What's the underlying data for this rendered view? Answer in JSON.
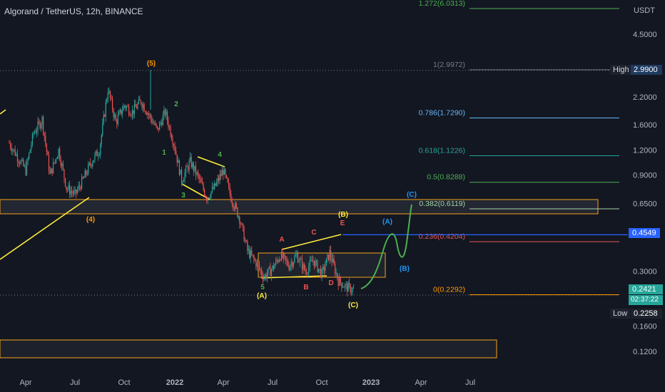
{
  "header": {
    "title": "Algorand / TetherUS, 12h, BINANCE"
  },
  "price_axis": {
    "currency": "USDT",
    "ticks": [
      "4.5000",
      "2.2000",
      "1.6000",
      "1.2000",
      "0.9000",
      "0.6500",
      "0.3000",
      "0.1600",
      "0.1200"
    ],
    "high_label": "High",
    "high_value": "2.9900",
    "low_label": "Low",
    "low_value": "0.2258",
    "last_price": "0.2421",
    "countdown": "02:37:22",
    "fib_price_tag": "0.4549"
  },
  "time_axis": {
    "ticks": [
      "Apr",
      "Jul",
      "Oct",
      "2022",
      "Apr",
      "Jul",
      "Oct",
      "2023",
      "Apr",
      "Jul"
    ]
  },
  "colors": {
    "background": "#131722",
    "candle_up": "#26a69a",
    "candle_down": "#ef5350",
    "trendline": "#ffeb3b",
    "zone_border": "#f7a21b",
    "projection": "#4caf50",
    "blue": "#2962ff",
    "high_tag": "#1e3a5f",
    "last_price_tag": "#26a69a"
  },
  "chart_data": {
    "type": "candlestick",
    "symbol": "Algorand / TetherUS",
    "interval": "12h",
    "exchange": "BINANCE",
    "price_scale": "log",
    "y_ticks": [
      4.5,
      2.2,
      1.6,
      1.2,
      0.9,
      0.65,
      0.3,
      0.16,
      0.12
    ],
    "x_ticks": [
      "Apr",
      "Jul",
      "Oct",
      "2022",
      "Apr",
      "Jul",
      "Oct",
      "2023",
      "Apr",
      "Jul"
    ],
    "fib_levels": [
      {
        "label": "1.272(6.0313)",
        "ratio": 1.272,
        "price": 6.0313,
        "color": "#4caf50"
      },
      {
        "label": "1(2.9972)",
        "ratio": 1,
        "price": 2.9972,
        "color": "#787b86"
      },
      {
        "label": "0.786(1.7290)",
        "ratio": 0.786,
        "price": 1.729,
        "color": "#64b5f6"
      },
      {
        "label": "0.618(1.1226)",
        "ratio": 0.618,
        "price": 1.1226,
        "color": "#26a69a"
      },
      {
        "label": "0.5(0.8288)",
        "ratio": 0.5,
        "price": 0.8288,
        "color": "#4caf50"
      },
      {
        "label": "0.382(0.6119)",
        "ratio": 0.382,
        "price": 0.6119,
        "color": "#a5d6a7"
      },
      {
        "label": "0.236(0.4204)",
        "ratio": 0.236,
        "price": 0.4204,
        "color": "#ef5350"
      },
      {
        "label": "0(0.2292)",
        "ratio": 0,
        "price": 0.2292,
        "color": "#ff9800"
      }
    ],
    "price_path": [
      [
        "2021-03",
        1.3
      ],
      [
        "2021-04",
        0.95
      ],
      [
        "2021-04",
        1.45
      ],
      [
        "2021-05",
        1.7
      ],
      [
        "2021-05",
        0.9
      ],
      [
        "2021-06",
        1.2
      ],
      [
        "2021-06",
        0.78
      ],
      [
        "2021-07",
        0.72
      ],
      [
        "2021-07",
        0.85
      ],
      [
        "2021-08",
        1.05
      ],
      [
        "2021-08",
        1.2
      ],
      [
        "2021-09",
        2.4
      ],
      [
        "2021-09",
        1.65
      ],
      [
        "2021-10",
        2.0
      ],
      [
        "2021-10",
        1.85
      ],
      [
        "2021-11",
        2.1
      ],
      [
        "2021-11",
        1.8
      ],
      [
        "2021-12",
        1.5
      ],
      [
        "2021-12",
        1.85
      ],
      [
        "2022-01",
        1.3
      ],
      [
        "2022-01",
        0.85
      ],
      [
        "2022-02",
        1.05
      ],
      [
        "2022-02",
        0.88
      ],
      [
        "2022-03",
        0.7
      ],
      [
        "2022-03",
        0.78
      ],
      [
        "2022-04",
        0.95
      ],
      [
        "2022-04",
        0.7
      ],
      [
        "2022-05",
        0.55
      ],
      [
        "2022-05",
        0.38
      ],
      [
        "2022-06",
        0.33
      ],
      [
        "2022-06",
        0.28
      ],
      [
        "2022-07",
        0.31
      ],
      [
        "2022-07",
        0.36
      ],
      [
        "2022-08",
        0.32
      ],
      [
        "2022-08",
        0.36
      ],
      [
        "2022-09",
        0.3
      ],
      [
        "2022-09",
        0.34
      ],
      [
        "2022-10",
        0.29
      ],
      [
        "2022-10",
        0.37
      ],
      [
        "2022-11",
        0.27
      ],
      [
        "2022-11",
        0.25
      ],
      [
        "2022-12",
        0.2421
      ]
    ],
    "high": 2.99,
    "low": 0.2258,
    "last": 0.2421,
    "annotations": [
      "(5)",
      "2",
      "1",
      "4",
      "3",
      "(4)",
      "5",
      "(A)",
      "A",
      "B",
      "C",
      "D",
      "E",
      "(B)",
      "(C)",
      "(A)",
      "(B)",
      "(C)"
    ]
  },
  "wave_labels": {
    "w5": "(5)",
    "w2": "2",
    "w1": "1",
    "w4": "4",
    "w3": "3",
    "w4b": "(4)",
    "i5": "5",
    "bigA": "(A)",
    "a": "A",
    "b": "B",
    "c": "C",
    "d": "D",
    "e": "E",
    "bigB": "(B)",
    "bigC": "(C)",
    "projA": "(A)",
    "projB": "(B)",
    "projC": "(C)"
  }
}
